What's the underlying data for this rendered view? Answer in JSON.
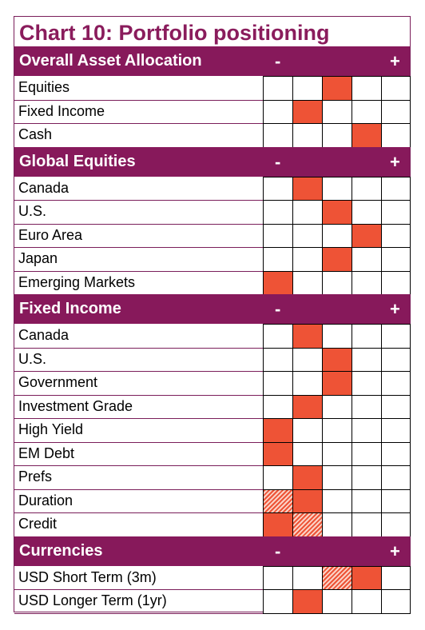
{
  "title": "Chart 10: Portfolio positioning",
  "colors": {
    "header_bg": "#87195b",
    "title": "#8a1c5c",
    "fill": "#ee5336"
  },
  "chart_data": {
    "type": "table",
    "title": "Chart 10: Portfolio positioning",
    "scale": {
      "min_label": "-",
      "max_label": "+",
      "levels": 5
    },
    "sections": [
      {
        "header": "Overall Asset Allocation",
        "minus": "-",
        "plus": "+",
        "rows": [
          {
            "label": "Equities",
            "position": 3
          },
          {
            "label": "Fixed Income",
            "position": 2
          },
          {
            "label": "Cash",
            "position": 4
          }
        ]
      },
      {
        "header": "Global Equities",
        "minus": "-",
        "plus": "+",
        "rows": [
          {
            "label": "Canada",
            "position": 2
          },
          {
            "label": "U.S.",
            "position": 3
          },
          {
            "label": "Euro Area",
            "position": 4
          },
          {
            "label": "Japan",
            "position": 3
          },
          {
            "label": "Emerging Markets",
            "position": 1
          }
        ]
      },
      {
        "header": "Fixed Income",
        "minus": "-",
        "plus": "+",
        "rows": [
          {
            "label": "Canada",
            "position": 2
          },
          {
            "label": "U.S.",
            "position": 3
          },
          {
            "label": "Government",
            "position": 3
          },
          {
            "label": "Investment Grade",
            "position": 2
          },
          {
            "label": "High Yield",
            "position": 1
          },
          {
            "label": "EM Debt",
            "position": 1
          },
          {
            "label": "Prefs",
            "position": 2
          },
          {
            "label": "Duration",
            "position": 2,
            "hatched_position": 1
          },
          {
            "label": "Credit",
            "position": 1,
            "hatched_position": 2
          }
        ]
      },
      {
        "header": "Currencies",
        "minus": "-",
        "plus": "+",
        "rows": [
          {
            "label": "USD Short Term (3m)",
            "position": 4,
            "hatched_position": 3
          },
          {
            "label": "USD Longer Term (1yr)",
            "position": 2
          }
        ]
      }
    ]
  }
}
